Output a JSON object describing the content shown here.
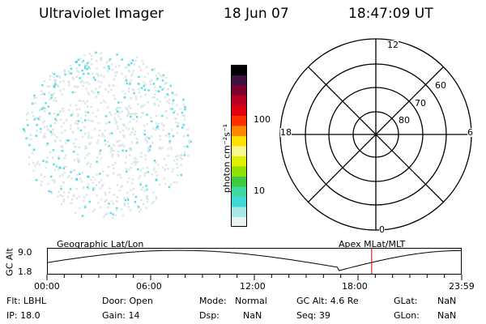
{
  "header": {
    "instrument": "Ultraviolet Imager",
    "date": "18 Jun 07",
    "time": "18:47:09 UT"
  },
  "colorbar": {
    "unit_label": "photon cm⁻²s⁻¹",
    "ticks": [
      {
        "label": "100",
        "value": 100
      },
      {
        "label": "10",
        "value": 10
      }
    ],
    "colors": [
      "#e8f4f4",
      "#a8e8e8",
      "#40d8d8",
      "#40d8a0",
      "#40c840",
      "#90e000",
      "#e0f000",
      "#f8f890",
      "#ffe000",
      "#ff8800",
      "#ff3000",
      "#e00010",
      "#b80020",
      "#800030",
      "#401040",
      "#000000"
    ]
  },
  "polar": {
    "mlt_labels": [
      {
        "label": "12",
        "pos": "top"
      },
      {
        "label": "18",
        "pos": "left"
      },
      {
        "label": "6",
        "pos": "right"
      },
      {
        "label": "0",
        "pos": "bottom"
      }
    ],
    "lat_labels": [
      "60",
      "70",
      "80"
    ]
  },
  "timeline": {
    "y_label": "GC Alt",
    "y_ticks": [
      "9.0",
      "1.8"
    ],
    "left_title": "Geographic Lat/Lon",
    "right_title": "Apex MLat/MLT",
    "x_ticks": [
      "00:00",
      "06:00",
      "12:00",
      "18:00",
      "23:59"
    ],
    "current_time_hours": 18.79
  },
  "info": {
    "row1": {
      "flt": "Flt: LBHL",
      "door": "Door: Open",
      "mode_label": "Mode:",
      "mode_value": "Normal",
      "gcalt": "GC Alt: 4.6 Re",
      "glat_label": "GLat:",
      "glat_value": "NaN"
    },
    "row2": {
      "ip": "IP: 18.0",
      "gain": "Gain: 14",
      "dsp_label": "Dsp:",
      "dsp_value": "NaN",
      "seq": "Seq: 39",
      "glon_label": "GLon:",
      "glon_value": "NaN"
    }
  },
  "colors": {
    "marker": "#cc0000",
    "speckle_light": "#d8e4e4",
    "speckle_cyan": "#40d8e0"
  }
}
